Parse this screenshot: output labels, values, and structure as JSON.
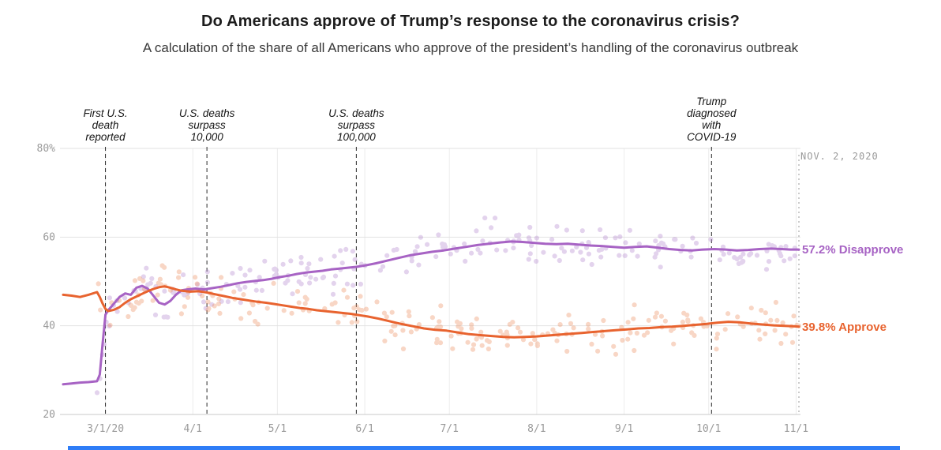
{
  "page": {
    "title": "Do Americans approve of Trump’s response to the coronavirus crisis?",
    "subtitle": "A calculation of the share of all Americans who approve of the president’s handling of the coronavirus outbreak"
  },
  "chart_data": {
    "type": "line",
    "title": "Do Americans approve of Trump’s response to the coronavirus crisis?",
    "subtitle": "A calculation of the share of all Americans who approve of the president’s handling of the coronavirus outbreak",
    "legend_position": "right-end-labels",
    "grid": true,
    "x_axis": {
      "unit": "date",
      "epoch_day0": "2020-02-15",
      "domain_days": [
        0,
        261
      ],
      "ticks": [
        {
          "day": 15,
          "label": "3/1/20"
        },
        {
          "day": 46,
          "label": "4/1"
        },
        {
          "day": 76,
          "label": "5/1"
        },
        {
          "day": 107,
          "label": "6/1"
        },
        {
          "day": 137,
          "label": "7/1"
        },
        {
          "day": 168,
          "label": "8/1"
        },
        {
          "day": 199,
          "label": "9/1"
        },
        {
          "day": 229,
          "label": "10/1"
        },
        {
          "day": 260,
          "label": "11/1"
        }
      ]
    },
    "y_axis": {
      "range": [
        20,
        80
      ],
      "ticks": [
        {
          "value": 20,
          "label": "20"
        },
        {
          "value": 40,
          "label": "40"
        },
        {
          "value": 60,
          "label": "60"
        },
        {
          "value": 80,
          "label": "80%"
        }
      ]
    },
    "current_date": {
      "label": "NOV. 2, 2020",
      "day": 261
    },
    "events": [
      {
        "day": 15,
        "lines": [
          "First U.S.",
          "death",
          "reported"
        ]
      },
      {
        "day": 51,
        "lines": [
          "U.S. deaths",
          "surpass",
          "10,000"
        ]
      },
      {
        "day": 104,
        "lines": [
          "U.S. deaths",
          "surpass",
          "100,000"
        ]
      },
      {
        "day": 230,
        "lines": [
          "Trump",
          "diagnosed",
          "with",
          "COVID-19"
        ]
      }
    ],
    "series": [
      {
        "name": "Disapprove",
        "end_label": "57.2% Disapprove",
        "end_value": 57.2,
        "color": "#a763c4",
        "scatter_color": "#b88ed1",
        "points": [
          [
            0,
            26.8
          ],
          [
            3,
            27
          ],
          [
            6,
            27.2
          ],
          [
            9,
            27.3
          ],
          [
            12,
            27.5
          ],
          [
            13,
            29
          ],
          [
            14,
            36
          ],
          [
            15,
            42.5
          ],
          [
            16,
            43.5
          ],
          [
            18,
            45
          ],
          [
            20,
            46.5
          ],
          [
            22,
            47.3
          ],
          [
            24,
            47
          ],
          [
            26,
            48.6
          ],
          [
            28,
            49
          ],
          [
            30,
            48.4
          ],
          [
            32,
            46.8
          ],
          [
            34,
            45.2
          ],
          [
            36,
            44.8
          ],
          [
            38,
            45.6
          ],
          [
            40,
            47
          ],
          [
            42,
            48
          ],
          [
            44,
            48.2
          ],
          [
            47,
            48.4
          ],
          [
            50,
            48.2
          ],
          [
            53,
            48.5
          ],
          [
            56,
            48.8
          ],
          [
            59,
            49.2
          ],
          [
            62,
            49.6
          ],
          [
            65,
            49.9
          ],
          [
            68,
            50.1
          ],
          [
            71,
            50.3
          ],
          [
            74,
            50.6
          ],
          [
            77,
            51
          ],
          [
            80,
            51.3
          ],
          [
            83,
            51.7
          ],
          [
            86,
            52
          ],
          [
            89,
            52.2
          ],
          [
            92,
            52.4
          ],
          [
            95,
            52.7
          ],
          [
            98,
            52.9
          ],
          [
            101,
            53.1
          ],
          [
            104,
            53.3
          ],
          [
            107,
            53.6
          ],
          [
            111,
            54.1
          ],
          [
            115,
            54.7
          ],
          [
            119,
            55.3
          ],
          [
            123,
            55.9
          ],
          [
            127,
            56.3
          ],
          [
            131,
            56.7
          ],
          [
            135,
            57
          ],
          [
            139,
            57.4
          ],
          [
            143,
            57.8
          ],
          [
            147,
            58.2
          ],
          [
            151,
            58.5
          ],
          [
            155,
            58.8
          ],
          [
            159,
            59
          ],
          [
            163,
            58.9
          ],
          [
            167,
            58.7
          ],
          [
            171,
            58.5
          ],
          [
            175,
            58.4
          ],
          [
            179,
            58.5
          ],
          [
            183,
            58.3
          ],
          [
            187,
            58.1
          ],
          [
            191,
            58
          ],
          [
            195,
            57.8
          ],
          [
            199,
            57.6
          ],
          [
            203,
            57.8
          ],
          [
            207,
            57.9
          ],
          [
            211,
            57.6
          ],
          [
            215,
            57.3
          ],
          [
            219,
            57.1
          ],
          [
            223,
            57
          ],
          [
            227,
            57.2
          ],
          [
            231,
            57.3
          ],
          [
            235,
            57.2
          ],
          [
            239,
            57
          ],
          [
            243,
            57.1
          ],
          [
            247,
            57.3
          ],
          [
            251,
            57.4
          ],
          [
            255,
            57.3
          ],
          [
            258,
            57.2
          ],
          [
            261,
            57.2
          ]
        ]
      },
      {
        "name": "Approve",
        "end_label": "39.8% Approve",
        "end_value": 39.8,
        "color": "#e8632f",
        "scatter_color": "#ef9468",
        "points": [
          [
            0,
            47
          ],
          [
            3,
            46.8
          ],
          [
            6,
            46.5
          ],
          [
            9,
            47
          ],
          [
            12,
            47.6
          ],
          [
            13,
            46.5
          ],
          [
            14,
            45
          ],
          [
            15,
            43.8
          ],
          [
            16,
            43.3
          ],
          [
            18,
            43.6
          ],
          [
            20,
            44.2
          ],
          [
            22,
            45.2
          ],
          [
            24,
            46
          ],
          [
            26,
            46.6
          ],
          [
            28,
            47.2
          ],
          [
            30,
            47.8
          ],
          [
            32,
            48.3
          ],
          [
            34,
            48.7
          ],
          [
            36,
            48.9
          ],
          [
            38,
            48.6
          ],
          [
            40,
            48.2
          ],
          [
            42,
            47.9
          ],
          [
            45,
            47.7
          ],
          [
            48,
            47.8
          ],
          [
            51,
            47.5
          ],
          [
            54,
            47.1
          ],
          [
            57,
            46.7
          ],
          [
            60,
            46.3
          ],
          [
            63,
            46
          ],
          [
            66,
            45.7
          ],
          [
            69,
            45.4
          ],
          [
            72,
            45.2
          ],
          [
            75,
            44.9
          ],
          [
            78,
            44.6
          ],
          [
            81,
            44.3
          ],
          [
            84,
            44
          ],
          [
            87,
            43.8
          ],
          [
            90,
            43.5
          ],
          [
            93,
            43.3
          ],
          [
            96,
            43.1
          ],
          [
            99,
            42.9
          ],
          [
            102,
            42.7
          ],
          [
            105,
            42.4
          ],
          [
            108,
            42.1
          ],
          [
            112,
            41.6
          ],
          [
            116,
            41
          ],
          [
            120,
            40.4
          ],
          [
            124,
            39.9
          ],
          [
            128,
            39.4
          ],
          [
            132,
            39.1
          ],
          [
            136,
            38.9
          ],
          [
            140,
            38.5
          ],
          [
            144,
            38.1
          ],
          [
            148,
            37.9
          ],
          [
            152,
            37.7
          ],
          [
            156,
            37.5
          ],
          [
            160,
            37.4
          ],
          [
            164,
            37.5
          ],
          [
            168,
            37.6
          ],
          [
            172,
            37.8
          ],
          [
            176,
            38
          ],
          [
            180,
            38.2
          ],
          [
            184,
            38.4
          ],
          [
            188,
            38.6
          ],
          [
            192,
            38.8
          ],
          [
            196,
            39
          ],
          [
            200,
            39.2
          ],
          [
            204,
            39.4
          ],
          [
            208,
            39.5
          ],
          [
            212,
            39.7
          ],
          [
            216,
            39.8
          ],
          [
            220,
            40
          ],
          [
            224,
            40.2
          ],
          [
            228,
            40.4
          ],
          [
            232,
            40.7
          ],
          [
            236,
            40.9
          ],
          [
            240,
            40.8
          ],
          [
            244,
            40.5
          ],
          [
            248,
            40.3
          ],
          [
            252,
            40.1
          ],
          [
            256,
            40
          ],
          [
            259,
            39.9
          ],
          [
            261,
            39.8
          ]
        ]
      }
    ],
    "scatter": {
      "seed": 20201102,
      "count": 235,
      "sigma": 2.2,
      "start_day": 12,
      "radius": 3.1,
      "opacity": 0.38
    }
  },
  "footer": {
    "bar_color": "#2e7df7"
  }
}
